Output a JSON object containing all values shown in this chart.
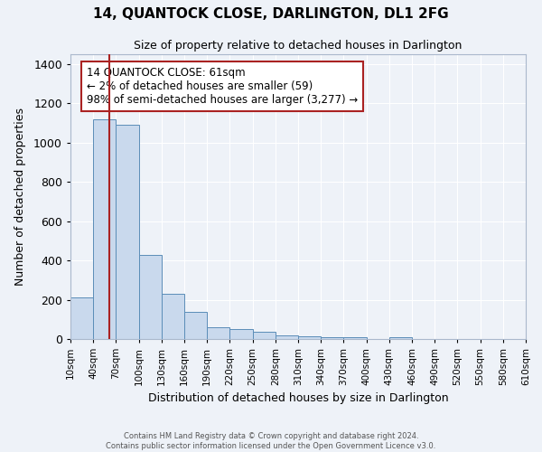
{
  "title": "14, QUANTOCK CLOSE, DARLINGTON, DL1 2FG",
  "subtitle": "Size of property relative to detached houses in Darlington",
  "xlabel": "Distribution of detached houses by size in Darlington",
  "ylabel": "Number of detached properties",
  "bar_color": "#c9d9ed",
  "bar_edge_color": "#5b8db8",
  "bg_color": "#eef2f8",
  "grid_color": "#ffffff",
  "bins": [
    10,
    40,
    70,
    100,
    130,
    160,
    190,
    220,
    250,
    280,
    310,
    340,
    370,
    400,
    430,
    460,
    490,
    520,
    550,
    580,
    610
  ],
  "counts": [
    210,
    1120,
    1090,
    430,
    230,
    140,
    60,
    50,
    35,
    20,
    15,
    10,
    10,
    0,
    10,
    0,
    0,
    0,
    0,
    0
  ],
  "tick_labels": [
    "10sqm",
    "40sqm",
    "70sqm",
    "100sqm",
    "130sqm",
    "160sqm",
    "190sqm",
    "220sqm",
    "250sqm",
    "280sqm",
    "310sqm",
    "340sqm",
    "370sqm",
    "400sqm",
    "430sqm",
    "460sqm",
    "490sqm",
    "520sqm",
    "550sqm",
    "580sqm",
    "610sqm"
  ],
  "ylim": [
    0,
    1450
  ],
  "yticks": [
    0,
    200,
    400,
    600,
    800,
    1000,
    1200,
    1400
  ],
  "property_line_x": 61,
  "property_line_color": "#aa2222",
  "annotation_title": "14 QUANTOCK CLOSE: 61sqm",
  "annotation_line1": "← 2% of detached houses are smaller (59)",
  "annotation_line2": "98% of semi-detached houses are larger (3,277) →",
  "annotation_box_color": "#ffffff",
  "annotation_border_color": "#aa2222",
  "footer_line1": "Contains HM Land Registry data © Crown copyright and database right 2024.",
  "footer_line2": "Contains public sector information licensed under the Open Government Licence v3.0."
}
